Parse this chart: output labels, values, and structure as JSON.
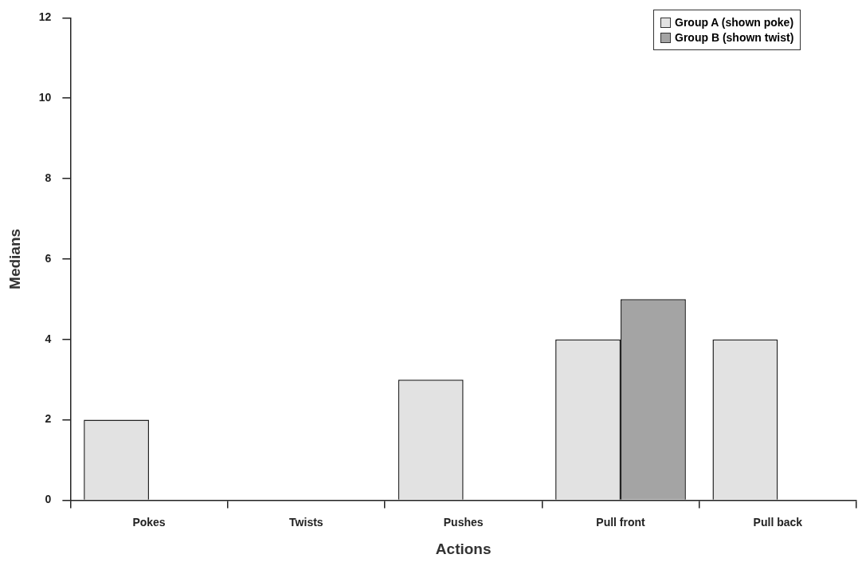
{
  "chart_data": {
    "type": "bar",
    "xlabel": "Actions",
    "ylabel": "Medians",
    "categories": [
      "Pokes",
      "Twists",
      "Pushes",
      "Pull front",
      "Pull back"
    ],
    "series": [
      {
        "name": "Group A (shown poke)",
        "color": "#e2e2e2",
        "values": [
          2,
          0,
          3,
          4,
          4
        ]
      },
      {
        "name": "Group B (shown twist)",
        "color": "#a4a4a4",
        "values": [
          0,
          0,
          0,
          5,
          0
        ]
      }
    ],
    "ylim": [
      0,
      12
    ],
    "yticks": [
      0,
      2,
      4,
      6,
      8,
      10,
      12
    ],
    "grid": false,
    "legend": "top right"
  }
}
